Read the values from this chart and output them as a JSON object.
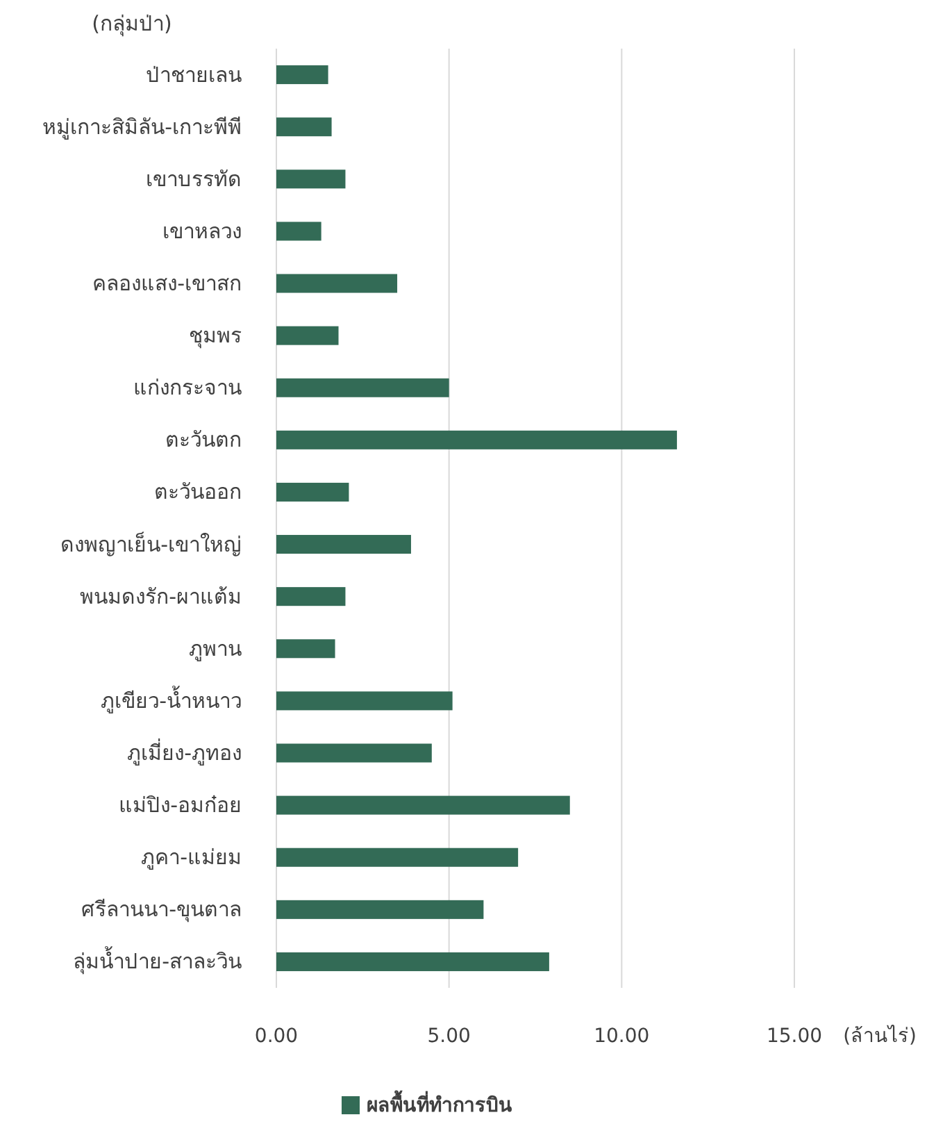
{
  "chart_data": {
    "type": "bar",
    "orientation": "horizontal",
    "ylabel": "(กลุ่มป่า)",
    "xlabel": "(ล้านไร่)",
    "categories": [
      "ป่าชายเลน",
      "หมู่เกาะสิมิลัน-เกาะพีพี",
      "เขาบรรทัด",
      "เขาหลวง",
      "คลองแสง-เขาสก",
      "ชุมพร",
      "แก่งกระจาน",
      "ตะวันตก",
      "ตะวันออก",
      "ดงพญาเย็น-เขาใหญ่",
      "พนมดงรัก-ผาแต้ม",
      "ภูพาน",
      "ภูเขียว-น้ำหนาว",
      "ภูเมี่ยง-ภูทอง",
      "แม่ปิง-อมก๋อย",
      "ภูคา-แม่ยม",
      "ศรีลานนา-ขุนตาล",
      "ลุ่มน้ำปาย-สาละวิน"
    ],
    "series": [
      {
        "name": "ผลพื้นที่ทำการบิน",
        "color": "#336b56",
        "values": [
          1.5,
          1.6,
          2.0,
          1.3,
          3.5,
          1.8,
          5.0,
          11.6,
          2.1,
          3.9,
          2.0,
          1.7,
          5.1,
          4.5,
          8.5,
          7.0,
          6.0,
          7.9
        ]
      }
    ],
    "xlim": [
      0,
      15
    ],
    "xticks": [
      {
        "value": 0,
        "label": "0.00"
      },
      {
        "value": 5,
        "label": "5.00"
      },
      {
        "value": 10,
        "label": "10.00"
      },
      {
        "value": 15,
        "label": "15.00"
      }
    ],
    "grid": "x",
    "legend": "bottom"
  }
}
